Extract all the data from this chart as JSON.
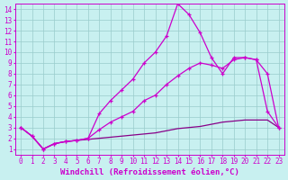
{
  "title": "",
  "xlabel": "Windchill (Refroidissement éolien,°C)",
  "bg_color": "#c8f0f0",
  "line_color1": "#cc00cc",
  "line_color2": "#880088",
  "grid_color": "#99cccc",
  "xlim": [
    -0.5,
    23.5
  ],
  "ylim": [
    0.5,
    14.5
  ],
  "xticks": [
    0,
    1,
    2,
    3,
    4,
    5,
    6,
    7,
    8,
    9,
    10,
    11,
    12,
    13,
    14,
    15,
    16,
    17,
    18,
    19,
    20,
    21,
    22,
    23
  ],
  "yticks": [
    1,
    2,
    3,
    4,
    5,
    6,
    7,
    8,
    9,
    10,
    11,
    12,
    13,
    14
  ],
  "series1_x": [
    0,
    1,
    2,
    3,
    4,
    5,
    6,
    7,
    8,
    9,
    10,
    11,
    12,
    13,
    14,
    15,
    16,
    17,
    18,
    19,
    20,
    21,
    22,
    23
  ],
  "series1_y": [
    3.0,
    2.2,
    1.0,
    1.5,
    1.7,
    1.8,
    2.0,
    4.3,
    5.5,
    6.5,
    7.5,
    9.0,
    10.0,
    11.5,
    14.5,
    13.5,
    11.8,
    9.5,
    8.0,
    9.5,
    9.5,
    9.3,
    4.5,
    3.0
  ],
  "series2_x": [
    0,
    1,
    2,
    3,
    4,
    5,
    6,
    7,
    8,
    9,
    10,
    11,
    12,
    13,
    14,
    15,
    16,
    17,
    18,
    19,
    20,
    21,
    22,
    23
  ],
  "series2_y": [
    3.0,
    2.2,
    1.0,
    1.5,
    1.7,
    1.8,
    2.0,
    2.8,
    3.5,
    4.0,
    4.5,
    5.5,
    6.0,
    7.0,
    7.8,
    8.5,
    9.0,
    8.8,
    8.5,
    9.3,
    9.5,
    9.3,
    8.0,
    3.0
  ],
  "series3_x": [
    0,
    1,
    2,
    3,
    4,
    5,
    6,
    7,
    8,
    9,
    10,
    11,
    12,
    13,
    14,
    15,
    16,
    17,
    18,
    19,
    20,
    21,
    22,
    23
  ],
  "series3_y": [
    3.0,
    2.2,
    1.0,
    1.5,
    1.7,
    1.8,
    1.9,
    2.0,
    2.1,
    2.2,
    2.3,
    2.4,
    2.5,
    2.7,
    2.9,
    3.0,
    3.1,
    3.3,
    3.5,
    3.6,
    3.7,
    3.7,
    3.7,
    3.0
  ],
  "axis_label_fontsize": 6.5,
  "tick_fontsize": 5.5
}
